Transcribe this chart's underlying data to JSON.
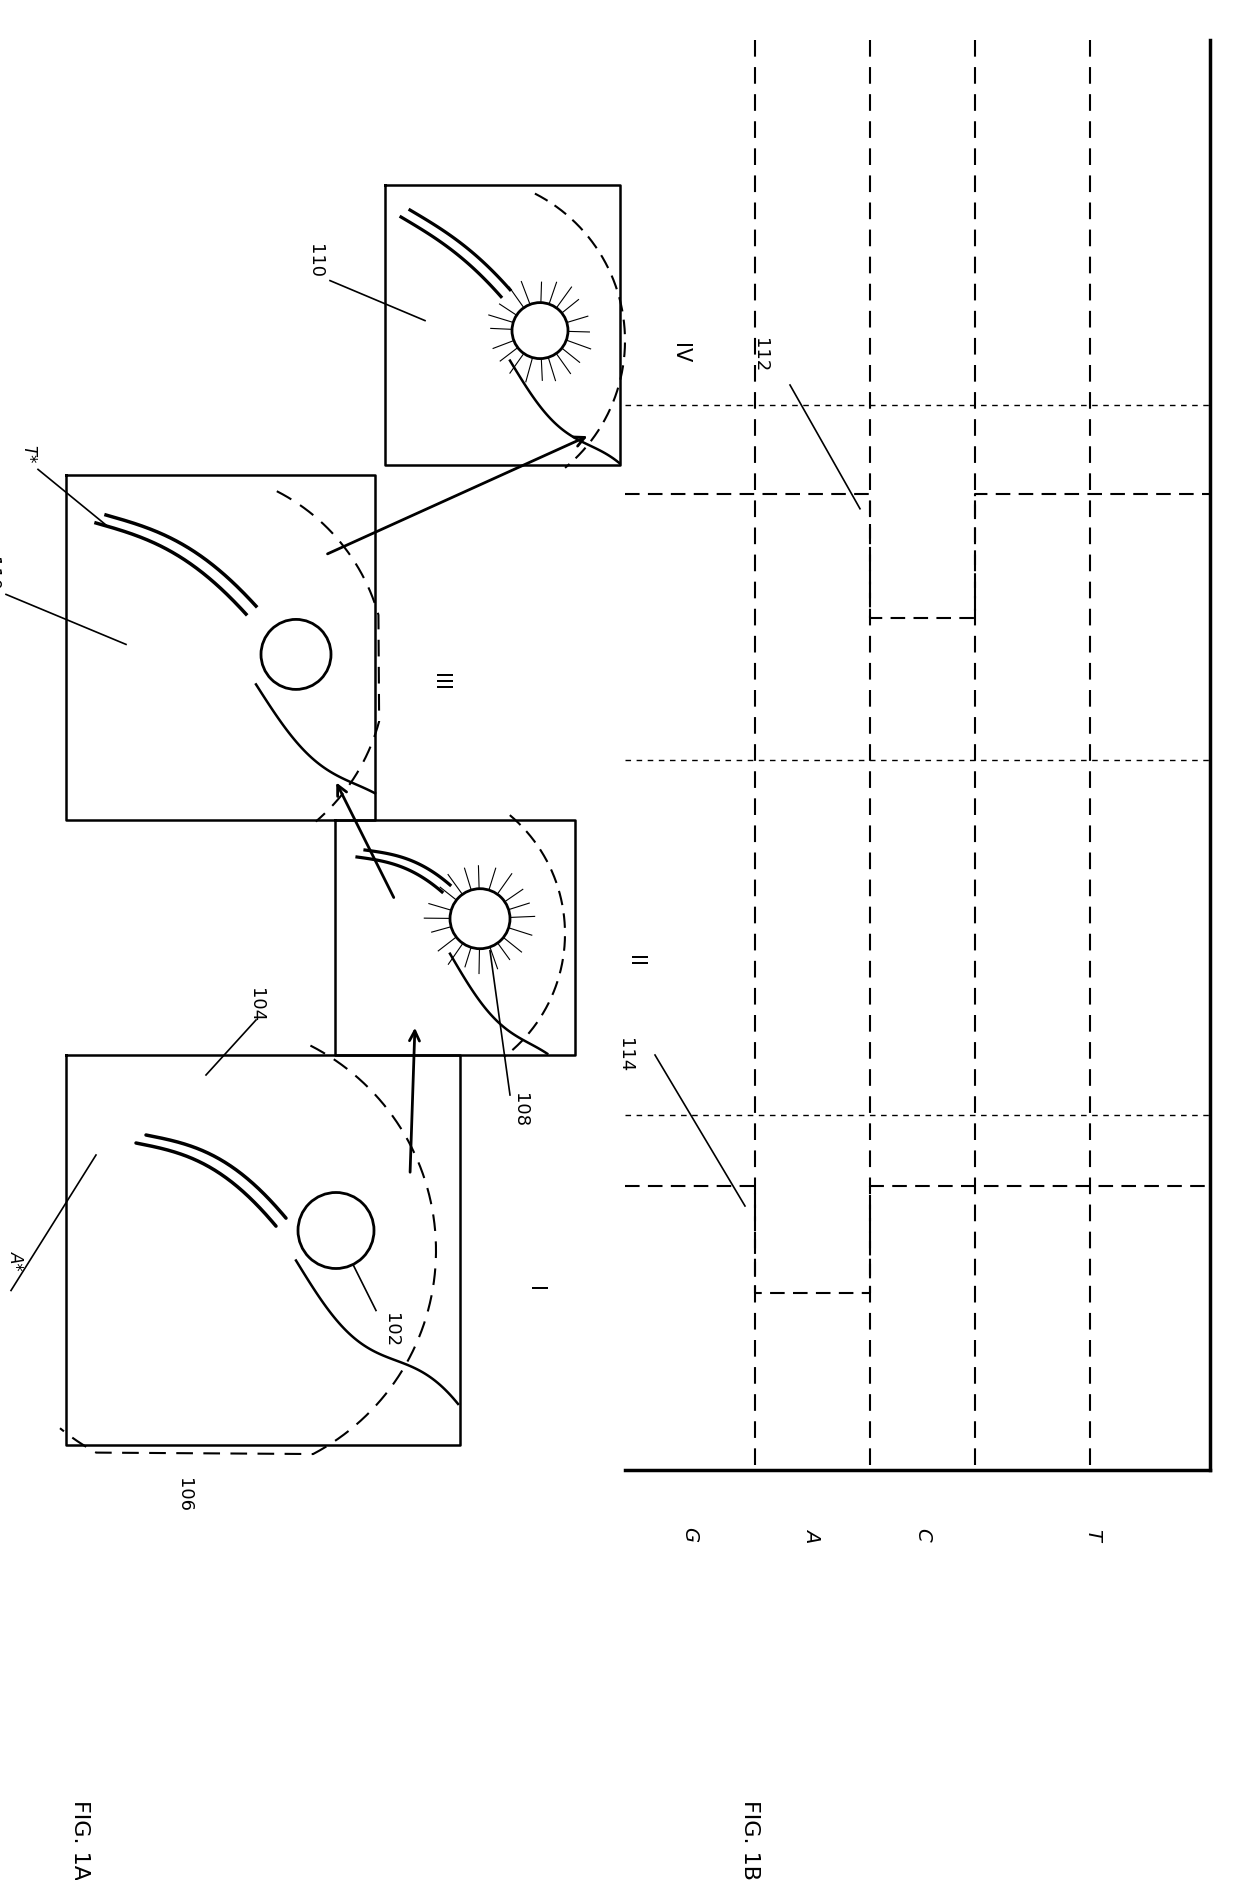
{
  "fig_title_a": "FIG. 1A",
  "fig_title_b": "FIG. 1B",
  "label_I": "I",
  "label_II": "II",
  "label_III": "III",
  "label_IV": "IV",
  "label_102": "102",
  "label_104": "104",
  "label_106": "106",
  "label_108": "108",
  "label_110": "110",
  "label_112": "112",
  "label_114": "114",
  "label_Astar": "A*",
  "label_Tstar": "T*",
  "label_G": "G",
  "label_A": "A",
  "label_C": "C",
  "label_T": "T",
  "bg_color": "#ffffff",
  "line_color": "#000000"
}
